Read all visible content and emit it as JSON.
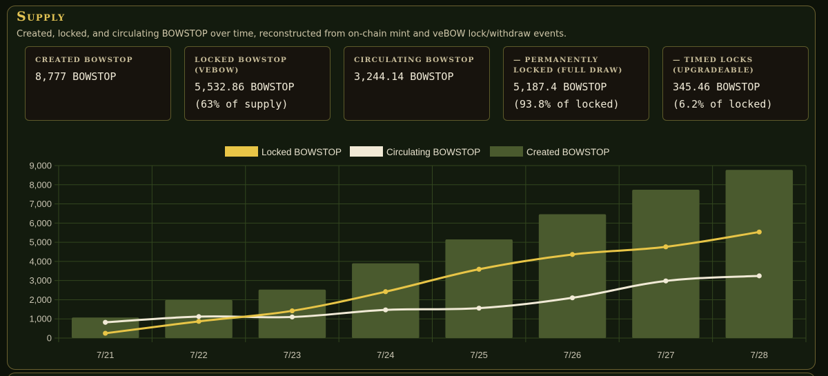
{
  "section": {
    "title": "Supply",
    "subtitle": "Created, locked, and circulating BOWSTOP over time, reconstructed from on-chain mint and veBOW lock/withdraw events."
  },
  "cards": [
    {
      "label": "Created BOWSTOP",
      "value": "8,777 BOWSTOP",
      "note": ""
    },
    {
      "label": "Locked BOWSTOP (veBOW)",
      "value": "5,532.86 BOWSTOP",
      "note": "(63% of supply)"
    },
    {
      "label": "Circulating BOWSTOP",
      "value": "3,244.14 BOWSTOP",
      "note": ""
    },
    {
      "label": "— Permanently locked (full draw)",
      "value": "5,187.4 BOWSTOP",
      "note": "(93.8% of locked)"
    },
    {
      "label": "— Timed locks (upgradeable)",
      "value": "345.46 BOWSTOP",
      "note": "(6.2% of locked)"
    }
  ],
  "colors": {
    "locked": "#e8c547",
    "circulating": "#f1ead6",
    "created": "#4a5a2e",
    "grid": "#33461f",
    "tick_text": "#c9c4b2"
  },
  "chart_data": {
    "type": "bar",
    "categories": [
      "7/21",
      "7/22",
      "7/23",
      "7/24",
      "7/25",
      "7/26",
      "7/27",
      "7/28"
    ],
    "series": [
      {
        "name": "Locked BOWSTOP",
        "type": "line",
        "values": [
          250,
          870,
          1420,
          2420,
          3590,
          4360,
          4760,
          5532.86
        ]
      },
      {
        "name": "Circulating BOWSTOP",
        "type": "line",
        "values": [
          820,
          1120,
          1100,
          1470,
          1560,
          2100,
          2980,
          3244.14
        ]
      },
      {
        "name": "Created BOWSTOP",
        "type": "bar",
        "values": [
          1070,
          1990,
          2530,
          3900,
          5150,
          6460,
          7740,
          8777
        ]
      }
    ],
    "ylim": [
      0,
      9000
    ],
    "yticks": [
      "0",
      "1,000",
      "2,000",
      "3,000",
      "4,000",
      "5,000",
      "6,000",
      "7,000",
      "8,000",
      "9,000"
    ],
    "legend": "top-center",
    "grid": true
  }
}
